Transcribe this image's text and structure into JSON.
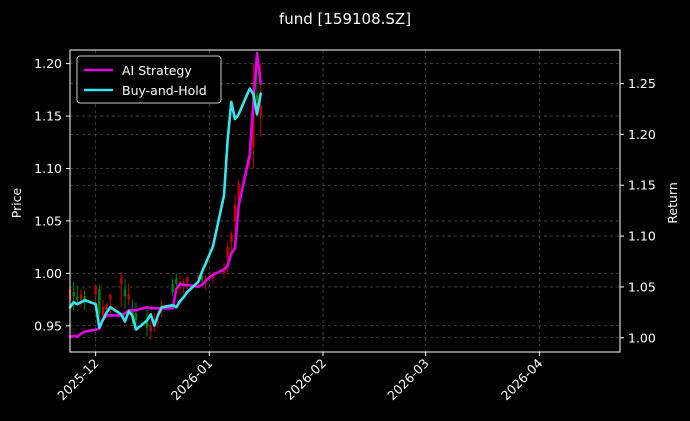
{
  "chart_data": {
    "type": "line",
    "title": "fund [159108.SZ]",
    "ylabel_left": "Price",
    "ylabel_right": "Return",
    "x_ticks": [
      "2025-12",
      "2026-01",
      "2026-02",
      "2026-03",
      "2026-04"
    ],
    "x_range": [
      "2025-11-24",
      "2026-04-23"
    ],
    "y_left_ticks": [
      "0.95",
      "1.00",
      "1.05",
      "1.10",
      "1.15",
      "1.20"
    ],
    "y_left_range": [
      0.925,
      1.213
    ],
    "y_right_ticks": [
      "1.00",
      "1.05",
      "1.10",
      "1.15",
      "1.20",
      "1.25"
    ],
    "y_right_range": [
      0.986,
      1.283
    ],
    "grid": true,
    "legend_position": "top-left",
    "colors": {
      "ai_strategy": "#e600e6",
      "buy_and_hold": "#33e6f2",
      "candle_up": "#cc0000",
      "candle_down": "#008800",
      "background": "#000000",
      "grid": "#4a4a4a"
    },
    "series": [
      {
        "name": "AI Strategy",
        "axis": "right",
        "x": [
          "2025-11-24",
          "2025-11-25",
          "2025-11-26",
          "2025-11-27",
          "2025-11-28",
          "2025-12-01",
          "2025-12-02",
          "2025-12-03",
          "2025-12-04",
          "2025-12-05",
          "2025-12-08",
          "2025-12-09",
          "2025-12-10",
          "2025-12-11",
          "2025-12-12",
          "2025-12-15",
          "2025-12-16",
          "2025-12-17",
          "2025-12-18",
          "2025-12-19",
          "2025-12-22",
          "2025-12-23",
          "2025-12-24",
          "2025-12-25",
          "2025-12-26",
          "2025-12-29",
          "2025-12-30",
          "2025-12-31",
          "2026-01-02",
          "2026-01-05",
          "2026-01-06",
          "2026-01-07",
          "2026-01-08",
          "2026-01-09",
          "2026-01-12",
          "2026-01-13",
          "2026-01-14",
          "2026-01-15"
        ],
        "values": [
          1.001,
          1.002,
          1.001,
          1.004,
          1.006,
          1.008,
          1.009,
          1.018,
          1.022,
          1.022,
          1.022,
          1.024,
          1.027,
          1.027,
          1.027,
          1.03,
          1.029,
          1.029,
          1.029,
          1.029,
          1.029,
          1.048,
          1.053,
          1.052,
          1.052,
          1.05,
          1.052,
          1.056,
          1.062,
          1.067,
          1.071,
          1.083,
          1.088,
          1.13,
          1.18,
          1.23,
          1.28,
          1.25
        ]
      },
      {
        "name": "Buy-and-Hold",
        "axis": "right",
        "x": [
          "2025-11-24",
          "2025-11-25",
          "2025-11-26",
          "2025-11-27",
          "2025-11-28",
          "2025-12-01",
          "2025-12-02",
          "2025-12-03",
          "2025-12-04",
          "2025-12-05",
          "2025-12-08",
          "2025-12-09",
          "2025-12-10",
          "2025-12-11",
          "2025-12-12",
          "2025-12-15",
          "2025-12-16",
          "2025-12-17",
          "2025-12-18",
          "2025-12-19",
          "2025-12-22",
          "2025-12-23",
          "2025-12-24",
          "2025-12-25",
          "2025-12-26",
          "2025-12-29",
          "2025-12-30",
          "2025-12-31",
          "2026-01-02",
          "2026-01-05",
          "2026-01-06",
          "2026-01-07",
          "2026-01-08",
          "2026-01-09",
          "2026-01-12",
          "2026-01-13",
          "2026-01-14",
          "2026-01-15"
        ],
        "values": [
          1.03,
          1.035,
          1.033,
          1.035,
          1.037,
          1.033,
          1.01,
          1.018,
          1.025,
          1.03,
          1.023,
          1.016,
          1.026,
          1.022,
          1.008,
          1.017,
          1.023,
          1.012,
          1.022,
          1.03,
          1.032,
          1.03,
          1.036,
          1.04,
          1.045,
          1.055,
          1.065,
          1.073,
          1.09,
          1.14,
          1.195,
          1.232,
          1.215,
          1.22,
          1.245,
          1.24,
          1.22,
          1.24
        ]
      }
    ],
    "candles": {
      "axis": "left",
      "x": [
        "2025-11-24",
        "2025-11-25",
        "2025-11-26",
        "2025-11-27",
        "2025-11-28",
        "2025-12-01",
        "2025-12-02",
        "2025-12-03",
        "2025-12-04",
        "2025-12-05",
        "2025-12-08",
        "2025-12-09",
        "2025-12-10",
        "2025-12-11",
        "2025-12-12",
        "2025-12-15",
        "2025-12-16",
        "2025-12-17",
        "2025-12-18",
        "2025-12-19",
        "2025-12-22",
        "2025-12-23",
        "2025-12-24",
        "2025-12-25",
        "2025-12-26",
        "2025-12-29",
        "2025-12-30",
        "2025-12-31",
        "2026-01-02",
        "2026-01-05",
        "2026-01-06",
        "2026-01-07",
        "2026-01-08",
        "2026-01-09",
        "2026-01-12",
        "2026-01-13",
        "2026-01-14",
        "2026-01-15"
      ],
      "high": [
        0.991,
        0.992,
        0.988,
        0.985,
        0.984,
        0.99,
        0.989,
        0.975,
        0.972,
        0.98,
        1.001,
        0.995,
        0.99,
        0.975,
        0.972,
        0.965,
        0.955,
        0.962,
        0.965,
        0.975,
        0.995,
        1.0,
        0.998,
        0.995,
        0.998,
        1.0,
        1.004,
        0.998,
        1.002,
        1.01,
        1.03,
        1.04,
        1.075,
        1.09,
        1.12,
        1.2,
        1.19,
        1.2
      ],
      "low": [
        0.96,
        0.965,
        0.97,
        0.968,
        0.965,
        0.972,
        0.958,
        0.955,
        0.96,
        0.962,
        0.968,
        0.966,
        0.97,
        0.952,
        0.948,
        0.94,
        0.937,
        0.944,
        0.948,
        0.958,
        0.978,
        0.985,
        0.98,
        0.98,
        0.985,
        0.987,
        0.99,
        0.984,
        0.99,
        0.995,
        1.0,
        1.02,
        1.04,
        1.06,
        1.1,
        1.1,
        1.15,
        1.13
      ],
      "open": [
        0.975,
        0.982,
        0.978,
        0.975,
        0.978,
        0.98,
        0.985,
        0.96,
        0.965,
        0.975,
        0.99,
        0.985,
        0.975,
        0.965,
        0.962,
        0.955,
        0.945,
        0.95,
        0.96,
        0.968,
        0.99,
        0.995,
        0.988,
        0.988,
        0.992,
        0.995,
        0.998,
        0.99,
        0.995,
        1.0,
        1.015,
        1.03,
        1.05,
        1.07,
        1.11,
        1.12,
        1.17,
        1.15
      ],
      "close": [
        0.985,
        0.978,
        0.975,
        0.98,
        0.972,
        0.988,
        0.962,
        0.968,
        0.97,
        0.98,
        0.996,
        0.978,
        0.98,
        0.958,
        0.955,
        0.948,
        0.95,
        0.955,
        0.962,
        0.97,
        0.982,
        0.99,
        0.992,
        0.99,
        0.996,
        0.998,
        0.994,
        0.995,
        0.998,
        1.005,
        1.025,
        1.038,
        1.065,
        1.085,
        1.115,
        1.17,
        1.165,
        1.16
      ]
    }
  }
}
